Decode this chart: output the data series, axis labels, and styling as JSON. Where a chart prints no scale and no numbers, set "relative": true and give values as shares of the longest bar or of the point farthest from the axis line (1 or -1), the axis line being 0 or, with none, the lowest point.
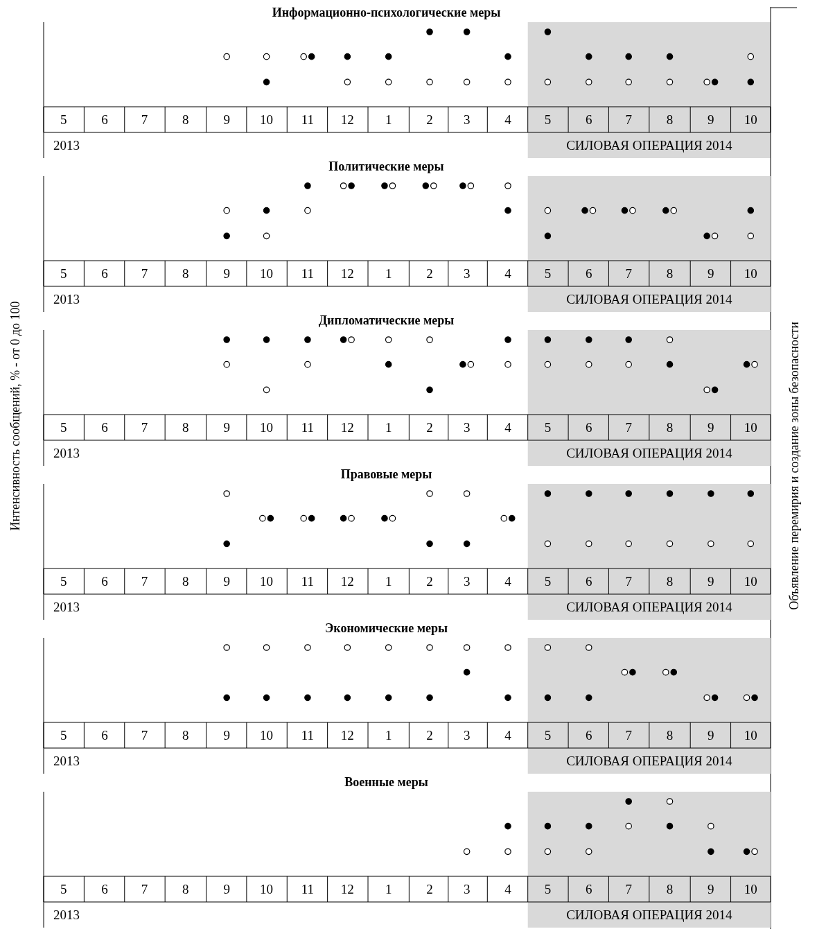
{
  "chart_data": [
    {
      "type": "scatter",
      "title": "Информационно-психологические меры",
      "relative": true,
      "marker": "circle",
      "xlim": [
        "2013-04-16",
        "2014-10-16"
      ],
      "xticks": [
        {
          "value": "2013-05",
          "label": "5"
        },
        {
          "value": "2013-06",
          "label": "6"
        },
        {
          "value": "2013-07",
          "label": "7"
        },
        {
          "value": "2013-08",
          "label": "8"
        },
        {
          "value": "2013-09",
          "label": "9"
        },
        {
          "value": "2013-10",
          "label": "10"
        },
        {
          "value": "2013-11",
          "label": "11"
        },
        {
          "value": "2013-12",
          "label": "12"
        },
        {
          "value": "2014-01",
          "label": "1"
        },
        {
          "value": "2014-02",
          "label": "2"
        },
        {
          "value": "2014-03",
          "label": "3"
        },
        {
          "value": "2014-04",
          "label": "4"
        },
        {
          "value": "2014-05",
          "label": "5"
        },
        {
          "value": "2014-06",
          "label": "6"
        },
        {
          "value": "2014-07",
          "label": "7"
        },
        {
          "value": "2014-08",
          "label": "8"
        },
        {
          "value": "2014-09",
          "label": "9"
        },
        {
          "value": "2014-10",
          "label": "10"
        }
      ],
      "series": [
        {
          "color": "#ffffff",
          "x": [
            "2013-09",
            "2013-10",
            "2013-10-29",
            "2013-12",
            "2014-01",
            "2014-02",
            "2014-03",
            "2014-04",
            "2014-05",
            "2014-06",
            "2014-07",
            "2014-08",
            "2014-08-29",
            "2014-10"
          ],
          "values": [
            0.67,
            0.67,
            0.67,
            0.33,
            0.33,
            0.33,
            0.33,
            0.33,
            0.33,
            0.33,
            0.33,
            0.33,
            0.33,
            0.67
          ]
        },
        {
          "color": "#000000",
          "x": [
            "2013-10",
            "2013-11-04",
            "2013-12",
            "2014-01",
            "2014-02",
            "2014-03",
            "2014-04",
            "2014-05",
            "2014-06",
            "2014-07",
            "2014-08",
            "2014-09-04",
            "2014-10"
          ],
          "values": [
            0.33,
            0.67,
            0.67,
            0.67,
            1,
            1,
            0.67,
            1,
            0.67,
            0.67,
            0.67,
            0.33,
            0.33
          ]
        }
      ],
      "bands": [
        {
          "axis": "x",
          "from": "2014-04-16",
          "to": "2014-10-16",
          "label": "СИЛОВАЯ ОПЕРАЦИЯ 2014",
          "color": "#d9d9d9"
        }
      ],
      "ref_lines": [
        {
          "axis": "x",
          "value": "2014-10-16",
          "label": "Объявление перемирия и создание зоны безопасности"
        }
      ],
      "annotations": [
        "2013"
      ]
    },
    {
      "type": "scatter",
      "title": "Политические меры",
      "relative": true,
      "marker": "circle",
      "xlim": [
        "2013-04-16",
        "2014-10-16"
      ],
      "xticks": [
        {
          "value": "2013-05",
          "label": "5"
        },
        {
          "value": "2013-06",
          "label": "6"
        },
        {
          "value": "2013-07",
          "label": "7"
        },
        {
          "value": "2013-08",
          "label": "8"
        },
        {
          "value": "2013-09",
          "label": "9"
        },
        {
          "value": "2013-10",
          "label": "10"
        },
        {
          "value": "2013-11",
          "label": "11"
        },
        {
          "value": "2013-12",
          "label": "12"
        },
        {
          "value": "2014-01",
          "label": "1"
        },
        {
          "value": "2014-02",
          "label": "2"
        },
        {
          "value": "2014-03",
          "label": "3"
        },
        {
          "value": "2014-04",
          "label": "4"
        },
        {
          "value": "2014-05",
          "label": "5"
        },
        {
          "value": "2014-06",
          "label": "6"
        },
        {
          "value": "2014-07",
          "label": "7"
        },
        {
          "value": "2014-08",
          "label": "8"
        },
        {
          "value": "2014-09",
          "label": "9"
        },
        {
          "value": "2014-10",
          "label": "10"
        }
      ],
      "series": [
        {
          "color": "#ffffff",
          "x": [
            "2013-09",
            "2013-10",
            "2013-11",
            "2013-11-28",
            "2014-01-04",
            "2014-02-04",
            "2014-03-04",
            "2014-04",
            "2014-05",
            "2014-06-04",
            "2014-07-04",
            "2014-08-04",
            "2014-09-04",
            "2014-10"
          ],
          "values": [
            0.67,
            0.33,
            0.67,
            1,
            1,
            1,
            1,
            1,
            0.67,
            0.67,
            0.67,
            0.67,
            0.33,
            0.33
          ]
        },
        {
          "color": "#000000",
          "x": [
            "2013-09",
            "2013-10",
            "2013-11",
            "2013-12-04",
            "2013-12-29",
            "2014-01-29",
            "2014-02-26",
            "2014-04",
            "2014-05",
            "2014-05-29",
            "2014-06-28",
            "2014-07-29",
            "2014-08-29",
            "2014-10"
          ],
          "values": [
            0.33,
            0.67,
            1,
            1,
            1,
            1,
            1,
            0.67,
            0.33,
            0.67,
            0.67,
            0.67,
            0.33,
            0.67
          ]
        }
      ],
      "bands": [
        {
          "axis": "x",
          "from": "2014-04-16",
          "to": "2014-10-16",
          "label": "СИЛОВАЯ ОПЕРАЦИЯ 2014",
          "color": "#d9d9d9"
        }
      ],
      "annotations": [
        "2013"
      ]
    },
    {
      "type": "scatter",
      "title": "Дипломатические меры",
      "ylabel": "Интенсивность сообщений, % - от 0 до 100",
      "relative": true,
      "marker": "circle",
      "xlim": [
        "2013-04-16",
        "2014-10-16"
      ],
      "xticks": [
        {
          "value": "2013-05",
          "label": "5"
        },
        {
          "value": "2013-06",
          "label": "6"
        },
        {
          "value": "2013-07",
          "label": "7"
        },
        {
          "value": "2013-08",
          "label": "8"
        },
        {
          "value": "2013-09",
          "label": "9"
        },
        {
          "value": "2013-10",
          "label": "10"
        },
        {
          "value": "2013-11",
          "label": "11"
        },
        {
          "value": "2013-12",
          "label": "12"
        },
        {
          "value": "2014-01",
          "label": "1"
        },
        {
          "value": "2014-02",
          "label": "2"
        },
        {
          "value": "2014-03",
          "label": "3"
        },
        {
          "value": "2014-04",
          "label": "4"
        },
        {
          "value": "2014-05",
          "label": "5"
        },
        {
          "value": "2014-06",
          "label": "6"
        },
        {
          "value": "2014-07",
          "label": "7"
        },
        {
          "value": "2014-08",
          "label": "8"
        },
        {
          "value": "2014-09",
          "label": "9"
        },
        {
          "value": "2014-10",
          "label": "10"
        }
      ],
      "series": [
        {
          "color": "#ffffff",
          "x": [
            "2013-09",
            "2013-10",
            "2013-11",
            "2013-12-04",
            "2014-01",
            "2014-02",
            "2014-03-04",
            "2014-04",
            "2014-05",
            "2014-06",
            "2014-07",
            "2014-08",
            "2014-08-29",
            "2014-10-04"
          ],
          "values": [
            0.67,
            0.33,
            0.67,
            1,
            1,
            1,
            0.67,
            0.67,
            0.67,
            0.67,
            0.67,
            1,
            0.33,
            0.67
          ]
        },
        {
          "color": "#000000",
          "x": [
            "2013-09",
            "2013-10",
            "2013-11",
            "2013-11-28",
            "2014-01",
            "2014-02",
            "2014-02-26",
            "2014-04",
            "2014-05",
            "2014-06",
            "2014-07",
            "2014-08",
            "2014-09-04",
            "2014-09-28"
          ],
          "values": [
            1,
            1,
            1,
            1,
            0.67,
            0.33,
            0.67,
            1,
            1,
            1,
            1,
            0.67,
            0.33,
            0.67
          ]
        }
      ],
      "bands": [
        {
          "axis": "x",
          "from": "2014-04-16",
          "to": "2014-10-16",
          "label": "СИЛОВАЯ ОПЕРАЦИЯ 2014",
          "color": "#d9d9d9"
        }
      ],
      "annotations": [
        "2013"
      ]
    },
    {
      "type": "scatter",
      "title": "Правовые меры",
      "relative": true,
      "marker": "circle",
      "xlim": [
        "2013-04-16",
        "2014-10-16"
      ],
      "xticks": [
        {
          "value": "2013-05",
          "label": "5"
        },
        {
          "value": "2013-06",
          "label": "6"
        },
        {
          "value": "2013-07",
          "label": "7"
        },
        {
          "value": "2013-08",
          "label": "8"
        },
        {
          "value": "2013-09",
          "label": "9"
        },
        {
          "value": "2013-10",
          "label": "10"
        },
        {
          "value": "2013-11",
          "label": "11"
        },
        {
          "value": "2013-12",
          "label": "12"
        },
        {
          "value": "2014-01",
          "label": "1"
        },
        {
          "value": "2014-02",
          "label": "2"
        },
        {
          "value": "2014-03",
          "label": "3"
        },
        {
          "value": "2014-04",
          "label": "4"
        },
        {
          "value": "2014-05",
          "label": "5"
        },
        {
          "value": "2014-06",
          "label": "6"
        },
        {
          "value": "2014-07",
          "label": "7"
        },
        {
          "value": "2014-08",
          "label": "8"
        },
        {
          "value": "2014-09",
          "label": "9"
        },
        {
          "value": "2014-10",
          "label": "10"
        }
      ],
      "series": [
        {
          "color": "#ffffff",
          "x": [
            "2013-09",
            "2013-09-28",
            "2013-10-29",
            "2013-12-04",
            "2014-01-04",
            "2014-02",
            "2014-03",
            "2014-03-29",
            "2014-05",
            "2014-06",
            "2014-07",
            "2014-08",
            "2014-09",
            "2014-10"
          ],
          "values": [
            1,
            0.67,
            0.67,
            0.67,
            0.67,
            1,
            1,
            0.67,
            0.33,
            0.33,
            0.33,
            0.33,
            0.33,
            0.33
          ]
        },
        {
          "color": "#000000",
          "x": [
            "2013-09",
            "2013-10-04",
            "2013-11-04",
            "2013-11-28",
            "2013-12-29",
            "2014-02",
            "2014-03",
            "2014-04-04",
            "2014-05",
            "2014-06",
            "2014-07",
            "2014-08",
            "2014-09",
            "2014-10"
          ],
          "values": [
            0.33,
            0.67,
            0.67,
            0.67,
            0.67,
            0.33,
            0.33,
            0.67,
            1,
            1,
            1,
            1,
            1,
            1
          ]
        }
      ],
      "bands": [
        {
          "axis": "x",
          "from": "2014-04-16",
          "to": "2014-10-16",
          "label": "СИЛОВАЯ ОПЕРАЦИЯ 2014",
          "color": "#d9d9d9"
        }
      ],
      "annotations": [
        "2013"
      ]
    },
    {
      "type": "scatter",
      "title": "Экономические меры",
      "relative": true,
      "marker": "circle",
      "xlim": [
        "2013-04-16",
        "2014-10-16"
      ],
      "xticks": [
        {
          "value": "2013-05",
          "label": "5"
        },
        {
          "value": "2013-06",
          "label": "6"
        },
        {
          "value": "2013-07",
          "label": "7"
        },
        {
          "value": "2013-08",
          "label": "8"
        },
        {
          "value": "2013-09",
          "label": "9"
        },
        {
          "value": "2013-10",
          "label": "10"
        },
        {
          "value": "2013-11",
          "label": "11"
        },
        {
          "value": "2013-12",
          "label": "12"
        },
        {
          "value": "2014-01",
          "label": "1"
        },
        {
          "value": "2014-02",
          "label": "2"
        },
        {
          "value": "2014-03",
          "label": "3"
        },
        {
          "value": "2014-04",
          "label": "4"
        },
        {
          "value": "2014-05",
          "label": "5"
        },
        {
          "value": "2014-06",
          "label": "6"
        },
        {
          "value": "2014-07",
          "label": "7"
        },
        {
          "value": "2014-08",
          "label": "8"
        },
        {
          "value": "2014-09",
          "label": "9"
        },
        {
          "value": "2014-10",
          "label": "10"
        }
      ],
      "series": [
        {
          "color": "#ffffff",
          "x": [
            "2013-09",
            "2013-10",
            "2013-11",
            "2013-12",
            "2014-01",
            "2014-02",
            "2014-03",
            "2014-04",
            "2014-05",
            "2014-06",
            "2014-06-28",
            "2014-07-29",
            "2014-08-29",
            "2014-09-28"
          ],
          "values": [
            1,
            1,
            1,
            1,
            1,
            1,
            1,
            1,
            1,
            1,
            0.67,
            0.67,
            0.33,
            0.33
          ]
        },
        {
          "color": "#000000",
          "x": [
            "2013-09",
            "2013-10",
            "2013-11",
            "2013-12",
            "2014-01",
            "2014-02",
            "2014-03",
            "2014-04",
            "2014-05",
            "2014-06",
            "2014-07-04",
            "2014-08-04",
            "2014-09-04",
            "2014-10-04"
          ],
          "values": [
            0.33,
            0.33,
            0.33,
            0.33,
            0.33,
            0.33,
            0.67,
            0.33,
            0.33,
            0.33,
            0.67,
            0.67,
            0.33,
            0.33
          ]
        }
      ],
      "bands": [
        {
          "axis": "x",
          "from": "2014-04-16",
          "to": "2014-10-16",
          "label": "СИЛОВАЯ ОПЕРАЦИЯ 2014",
          "color": "#d9d9d9"
        }
      ],
      "annotations": [
        "2013"
      ]
    },
    {
      "type": "scatter",
      "title": "Военные меры",
      "relative": true,
      "marker": "circle",
      "xlim": [
        "2013-04-16",
        "2014-10-16"
      ],
      "xticks": [
        {
          "value": "2013-05",
          "label": "5"
        },
        {
          "value": "2013-06",
          "label": "6"
        },
        {
          "value": "2013-07",
          "label": "7"
        },
        {
          "value": "2013-08",
          "label": "8"
        },
        {
          "value": "2013-09",
          "label": "9"
        },
        {
          "value": "2013-10",
          "label": "10"
        },
        {
          "value": "2013-11",
          "label": "11"
        },
        {
          "value": "2013-12",
          "label": "12"
        },
        {
          "value": "2014-01",
          "label": "1"
        },
        {
          "value": "2014-02",
          "label": "2"
        },
        {
          "value": "2014-03",
          "label": "3"
        },
        {
          "value": "2014-04",
          "label": "4"
        },
        {
          "value": "2014-05",
          "label": "5"
        },
        {
          "value": "2014-06",
          "label": "6"
        },
        {
          "value": "2014-07",
          "label": "7"
        },
        {
          "value": "2014-08",
          "label": "8"
        },
        {
          "value": "2014-09",
          "label": "9"
        },
        {
          "value": "2014-10",
          "label": "10"
        }
      ],
      "series": [
        {
          "color": "#ffffff",
          "x": [
            "2014-03",
            "2014-04",
            "2014-05",
            "2014-06",
            "2014-07",
            "2014-08",
            "2014-09",
            "2014-10-04"
          ],
          "values": [
            0.33,
            0.33,
            0.33,
            0.33,
            0.67,
            1,
            0.67,
            0.33
          ]
        },
        {
          "color": "#000000",
          "x": [
            "2014-04",
            "2014-05",
            "2014-06",
            "2014-07",
            "2014-08",
            "2014-09",
            "2014-09-28"
          ],
          "values": [
            0.67,
            0.67,
            0.67,
            1,
            0.67,
            0.33,
            0.33
          ]
        }
      ],
      "bands": [
        {
          "axis": "x",
          "from": "2014-04-16",
          "to": "2014-10-16",
          "label": "СИЛОВАЯ ОПЕРАЦИЯ 2014",
          "color": "#d9d9d9"
        }
      ],
      "annotations": [
        "2013"
      ]
    }
  ]
}
